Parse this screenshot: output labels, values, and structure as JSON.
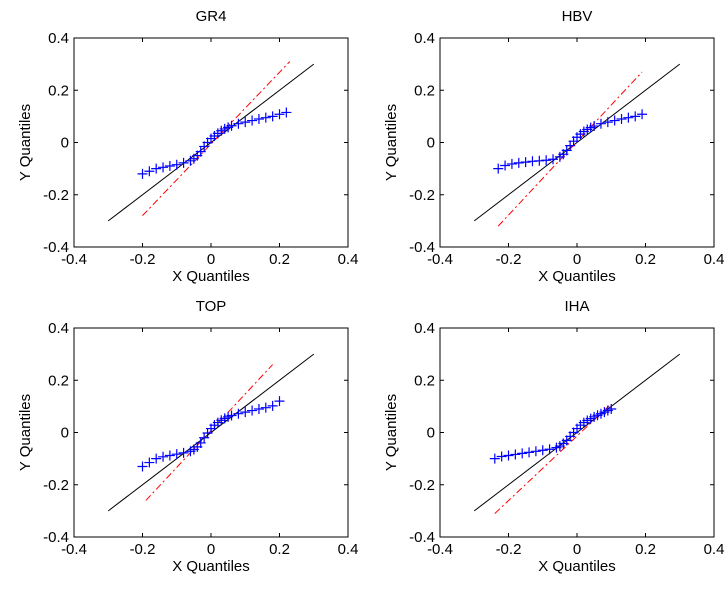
{
  "chart_data": [
    {
      "type": "scatter",
      "title": "GR4",
      "xlabel": "X Quantiles",
      "ylabel": "Y Quantiles",
      "xlim": [
        -0.4,
        0.4
      ],
      "ylim": [
        -0.4,
        0.4
      ],
      "xticks": [
        "-0.4",
        "-0.2",
        "0",
        "0.2",
        "0.4"
      ],
      "yticks": [
        "-0.4",
        "-0.2",
        "0",
        "0.2",
        "0.4"
      ],
      "reference_line": {
        "x": [
          -0.3,
          0.3
        ],
        "y": [
          -0.3,
          0.3
        ],
        "color": "#000000",
        "style": "solid"
      },
      "fit_line": {
        "x": [
          -0.2,
          0.23
        ],
        "y": [
          -0.28,
          0.31
        ],
        "color": "#ff0000",
        "style": "dash-dot"
      },
      "series": [
        {
          "marker": "+",
          "color": "#0000ff",
          "x": [
            -0.2,
            -0.18,
            -0.16,
            -0.14,
            -0.12,
            -0.1,
            -0.08,
            -0.06,
            -0.05,
            -0.04,
            -0.03,
            -0.02,
            -0.01,
            0.0,
            0.01,
            0.02,
            0.03,
            0.04,
            0.05,
            0.06,
            0.08,
            0.1,
            0.12,
            0.14,
            0.16,
            0.18,
            0.2,
            0.22
          ],
          "y": [
            -0.12,
            -0.11,
            -0.1,
            -0.095,
            -0.09,
            -0.085,
            -0.078,
            -0.07,
            -0.062,
            -0.05,
            -0.035,
            -0.015,
            0.0,
            0.015,
            0.025,
            0.035,
            0.045,
            0.052,
            0.058,
            0.064,
            0.072,
            0.078,
            0.084,
            0.09,
            0.095,
            0.1,
            0.108,
            0.115
          ]
        }
      ]
    },
    {
      "type": "scatter",
      "title": "HBV",
      "xlabel": "X Quantiles",
      "ylabel": "Y Quantiles",
      "xlim": [
        -0.4,
        0.4
      ],
      "ylim": [
        -0.4,
        0.4
      ],
      "xticks": [
        "-0.4",
        "-0.2",
        "0",
        "0.2",
        "0.4"
      ],
      "yticks": [
        "-0.4",
        "-0.2",
        "0",
        "0.2",
        "0.4"
      ],
      "reference_line": {
        "x": [
          -0.3,
          0.3
        ],
        "y": [
          -0.3,
          0.3
        ],
        "color": "#000000",
        "style": "solid"
      },
      "fit_line": {
        "x": [
          -0.23,
          0.19
        ],
        "y": [
          -0.32,
          0.27
        ],
        "color": "#ff0000",
        "style": "dash-dot"
      },
      "series": [
        {
          "marker": "+",
          "color": "#0000ff",
          "x": [
            -0.23,
            -0.21,
            -0.19,
            -0.17,
            -0.15,
            -0.13,
            -0.11,
            -0.09,
            -0.07,
            -0.05,
            -0.04,
            -0.03,
            -0.02,
            -0.01,
            0.0,
            0.01,
            0.02,
            0.03,
            0.04,
            0.05,
            0.07,
            0.09,
            0.11,
            0.13,
            0.15,
            0.17,
            0.19
          ],
          "y": [
            -0.1,
            -0.088,
            -0.082,
            -0.078,
            -0.075,
            -0.072,
            -0.07,
            -0.068,
            -0.064,
            -0.055,
            -0.045,
            -0.03,
            -0.012,
            0.005,
            0.02,
            0.032,
            0.042,
            0.05,
            0.057,
            0.063,
            0.072,
            0.078,
            0.084,
            0.09,
            0.095,
            0.1,
            0.108
          ]
        }
      ]
    },
    {
      "type": "scatter",
      "title": "TOP",
      "xlabel": "X Quantiles",
      "ylabel": "Y Quantiles",
      "xlim": [
        -0.4,
        0.4
      ],
      "ylim": [
        -0.4,
        0.4
      ],
      "xticks": [
        "-0.4",
        "-0.2",
        "0",
        "0.2",
        "0.4"
      ],
      "yticks": [
        "-0.4",
        "-0.2",
        "0",
        "0.2",
        "0.4"
      ],
      "reference_line": {
        "x": [
          -0.3,
          0.3
        ],
        "y": [
          -0.3,
          0.3
        ],
        "color": "#000000",
        "style": "solid"
      },
      "fit_line": {
        "x": [
          -0.19,
          0.18
        ],
        "y": [
          -0.26,
          0.26
        ],
        "color": "#ff0000",
        "style": "dash-dot"
      },
      "series": [
        {
          "marker": "+",
          "color": "#0000ff",
          "x": [
            -0.2,
            -0.18,
            -0.16,
            -0.14,
            -0.12,
            -0.1,
            -0.08,
            -0.06,
            -0.05,
            -0.04,
            -0.03,
            -0.02,
            -0.01,
            0.0,
            0.01,
            0.02,
            0.03,
            0.04,
            0.05,
            0.06,
            0.08,
            0.1,
            0.12,
            0.14,
            0.16,
            0.18,
            0.2
          ],
          "y": [
            -0.13,
            -0.115,
            -0.1,
            -0.093,
            -0.088,
            -0.083,
            -0.078,
            -0.072,
            -0.065,
            -0.055,
            -0.04,
            -0.02,
            -0.002,
            0.015,
            0.028,
            0.038,
            0.047,
            0.054,
            0.06,
            0.065,
            0.072,
            0.078,
            0.084,
            0.09,
            0.095,
            0.102,
            0.12
          ]
        }
      ]
    },
    {
      "type": "scatter",
      "title": "IHA",
      "xlabel": "X Quantiles",
      "ylabel": "Y Quantiles",
      "xlim": [
        -0.4,
        0.4
      ],
      "ylim": [
        -0.4,
        0.4
      ],
      "xticks": [
        "-0.4",
        "-0.2",
        "0",
        "0.2",
        "0.4"
      ],
      "yticks": [
        "-0.4",
        "-0.2",
        "0",
        "0.2",
        "0.4"
      ],
      "reference_line": {
        "x": [
          -0.3,
          0.3
        ],
        "y": [
          -0.3,
          0.3
        ],
        "color": "#000000",
        "style": "solid"
      },
      "fit_line": {
        "x": [
          -0.24,
          0.1
        ],
        "y": [
          -0.31,
          0.11
        ],
        "color": "#ff0000",
        "style": "dash-dot"
      },
      "series": [
        {
          "marker": "+",
          "color": "#0000ff",
          "x": [
            -0.24,
            -0.22,
            -0.2,
            -0.18,
            -0.16,
            -0.14,
            -0.12,
            -0.1,
            -0.08,
            -0.06,
            -0.05,
            -0.04,
            -0.03,
            -0.02,
            -0.01,
            0.0,
            0.01,
            0.02,
            0.03,
            0.04,
            0.05,
            0.06,
            0.07,
            0.08,
            0.09,
            0.1
          ],
          "y": [
            -0.1,
            -0.092,
            -0.088,
            -0.084,
            -0.08,
            -0.076,
            -0.072,
            -0.068,
            -0.064,
            -0.058,
            -0.052,
            -0.042,
            -0.03,
            -0.015,
            0.0,
            0.015,
            0.028,
            0.038,
            0.046,
            0.053,
            0.06,
            0.066,
            0.072,
            0.078,
            0.084,
            0.09
          ]
        }
      ]
    }
  ]
}
